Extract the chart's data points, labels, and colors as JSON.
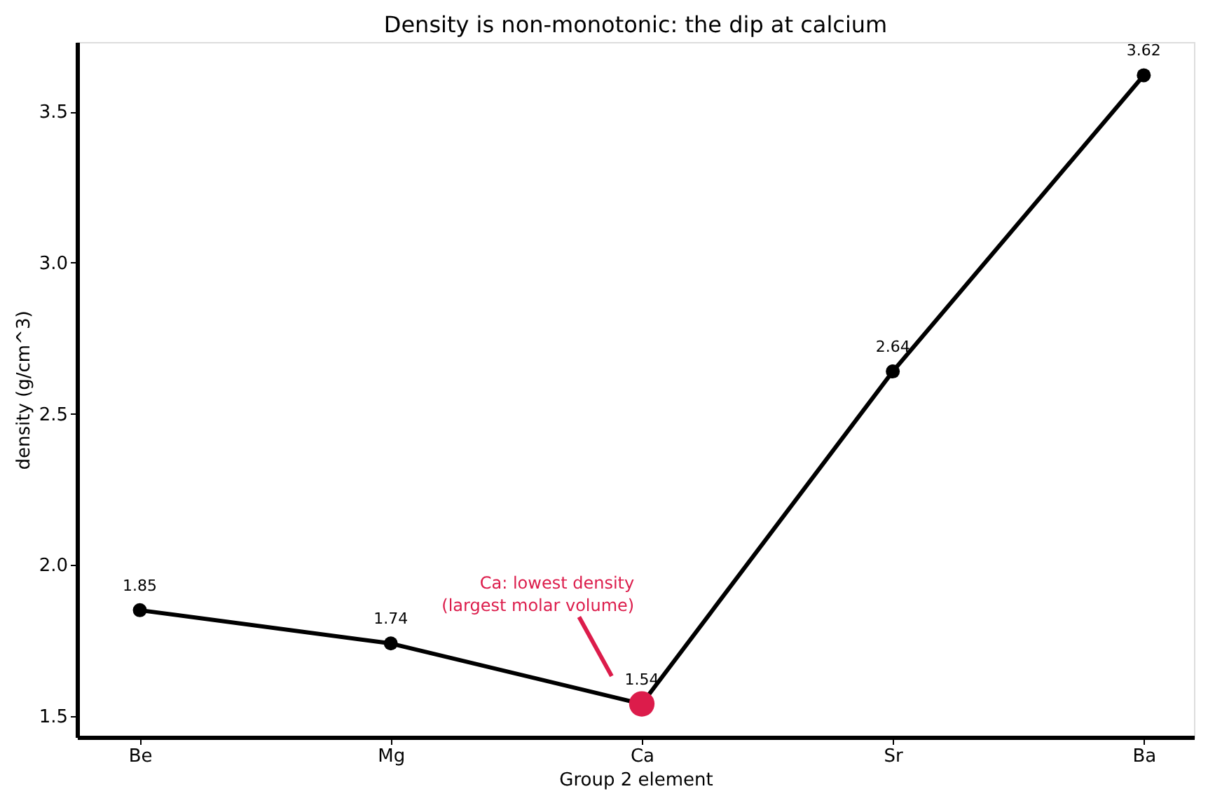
{
  "chart_data": {
    "type": "line",
    "title": "Density is non-monotonic: the dip at calcium",
    "xlabel": "Group 2 element",
    "ylabel": "density (g/cm^3)",
    "categories": [
      "Be",
      "Mg",
      "Ca",
      "Sr",
      "Ba"
    ],
    "series": [
      {
        "color": "#000000",
        "values": [
          1.85,
          1.74,
          1.54,
          2.64,
          3.62
        ],
        "colors": [
          "#000000",
          "#000000",
          "#dc1c4b",
          "#000000",
          "#000000"
        ]
      }
    ],
    "ylim": [
      1.43,
      3.73
    ],
    "yticks": [
      1.5,
      {
        "value": 2,
        "label": "2.0"
      },
      2.5,
      {
        "value": 3,
        "label": "3.0"
      },
      3.5
    ],
    "annotations": [
      "Ca: lowest density\n(largest molar volume)"
    ],
    "data_labels": true,
    "grid": false,
    "marker": "circle",
    "line_style": "solid"
  }
}
